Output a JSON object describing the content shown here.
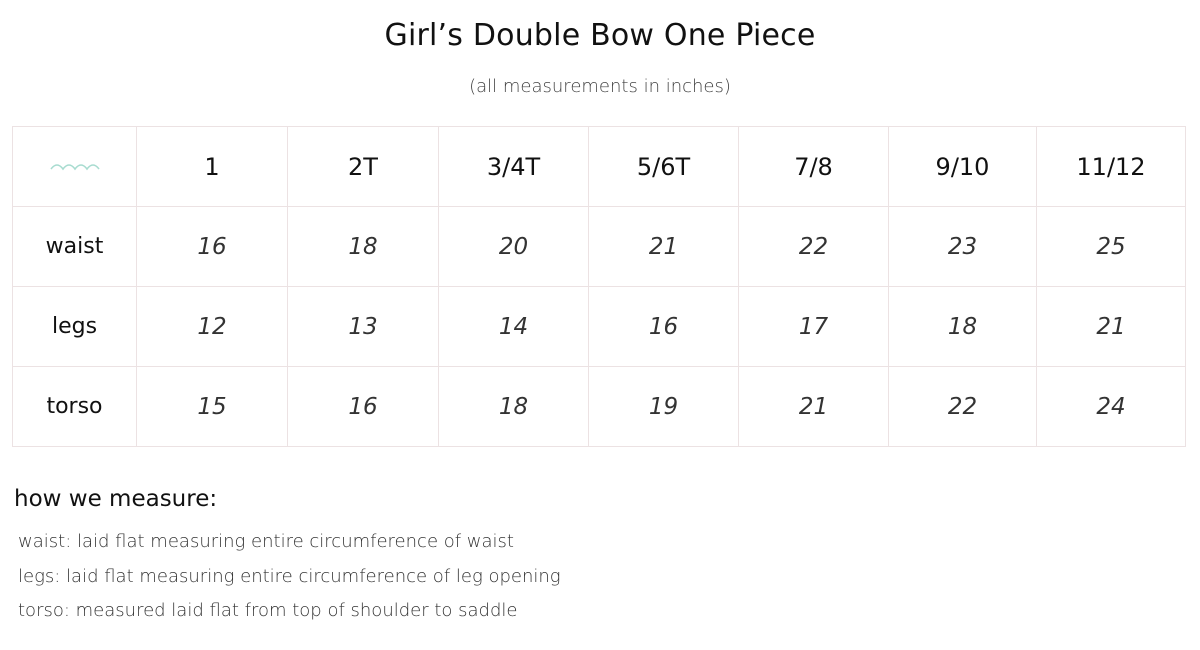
{
  "title": "Girl’s Double Bow One Piece",
  "subtitle": "(all measurements in inches)",
  "table": {
    "corner_icon": "wave-icon",
    "corner_icon_color": "#a8dcd0",
    "sizes": [
      "1",
      "2T",
      "3/4T",
      "5/6T",
      "7/8",
      "9/10",
      "11/12"
    ],
    "rows": [
      {
        "label": "waist",
        "values": [
          "16",
          "18",
          "20",
          "21",
          "22",
          "23",
          "25"
        ]
      },
      {
        "label": "legs",
        "values": [
          "12",
          "13",
          "14",
          "16",
          "17",
          "18",
          "21"
        ]
      },
      {
        "label": "torso",
        "values": [
          "15",
          "16",
          "18",
          "19",
          "21",
          "22",
          "24"
        ]
      }
    ]
  },
  "how_we_measure": {
    "heading": "how we measure:",
    "notes": [
      "waist: laid flat measuring entire circumference of waist",
      "legs: laid flat measuring entire circumference of leg opening",
      "torso: measured laid flat from top of shoulder to saddle"
    ]
  }
}
